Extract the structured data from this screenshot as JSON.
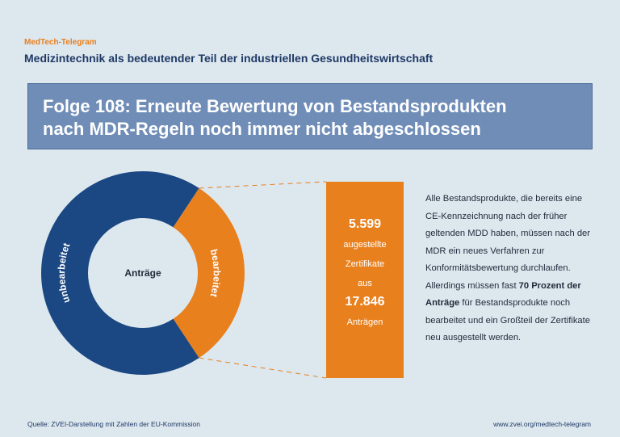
{
  "header": {
    "brand": "MedTech-Telegram",
    "subtitle": "Medizintechnik als bedeutender Teil der industriellen Gesundheitswirtschaft",
    "title_line1": "Folge 108: Erneute Bewertung von Bestandsprodukten",
    "title_line2": "nach MDR-Regeln noch immer nicht abgeschlossen"
  },
  "chart_data": {
    "type": "pie",
    "title": "Anträge",
    "categories": [
      "unbearbeitet",
      "bearbeitet"
    ],
    "values": [
      12247,
      5599
    ],
    "colors": [
      "#1b4883",
      "#e8801e"
    ]
  },
  "callout": {
    "number1": "5.599",
    "line1": "augestellte",
    "line2": "Zertifikate",
    "line3": "aus",
    "number2": "17.846",
    "line4": "Anträgen"
  },
  "description": {
    "part1": "Alle Bestandsprodukte, die bereits eine CE-Kennzeichnung nach der früher geltenden MDD haben, müssen nach der MDR ein neues Verfahren zur Konformitätsbewertung durchlaufen. Allerdings müssen fast ",
    "bold": "70 Prozent der Anträge",
    "part2": " für Bestandsprodukte noch bearbeitet und ein Großteil der Zertifi­kate neu ausgestellt werden."
  },
  "footer": {
    "source": "Quelle: ZVEI-Darstellung mit Zahlen der EU-Kommission",
    "url": "www.zvei.org/medtech-telegram"
  },
  "colors": {
    "background": "#dde7ee",
    "banner": "#6f8db7",
    "navy": "#1b4883",
    "orange": "#e8801e"
  }
}
